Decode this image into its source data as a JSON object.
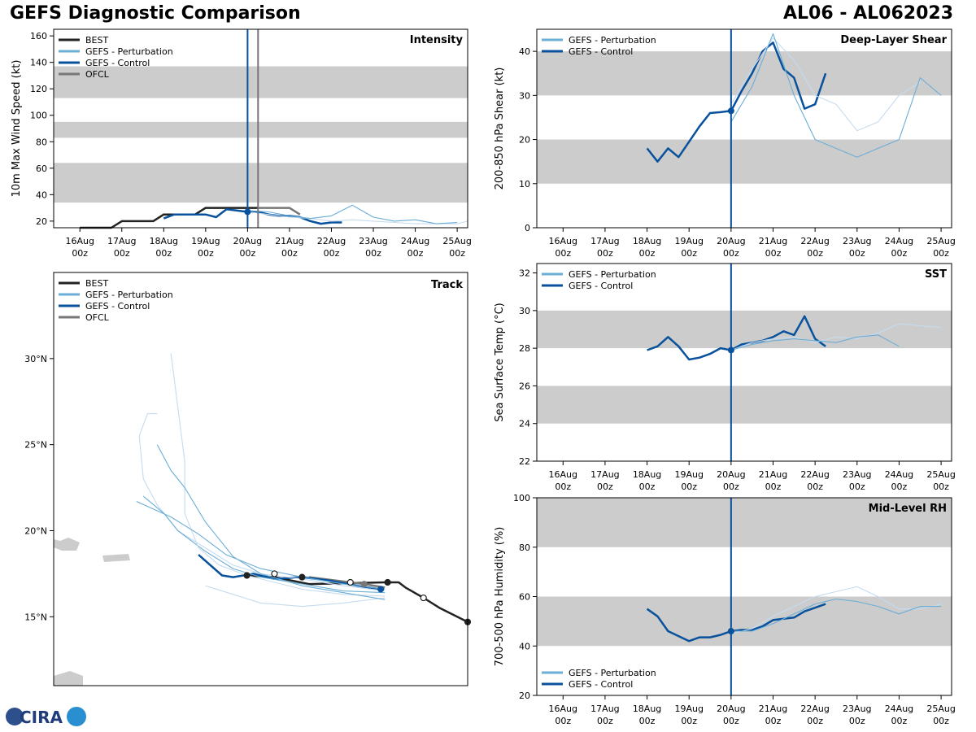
{
  "header": {
    "title_left": "GEFS Diagnostic Comparison",
    "title_right": "AL06 - AL062023",
    "logo_text": "CIRA"
  },
  "colors": {
    "best": "#222222",
    "perturbation": "#6baed6",
    "perturbation_light": "#c6dbef",
    "control": "#08519c",
    "ofcl": "#777777",
    "band": "#cccccc"
  },
  "time_axis": {
    "hours": [
      0,
      24,
      48,
      72,
      96,
      120,
      144,
      168,
      192
    ],
    "labels_top": [
      "16Aug",
      "17Aug",
      "18Aug",
      "19Aug",
      "20Aug",
      "21Aug",
      "22Aug",
      "23Aug",
      "24Aug",
      "25Aug"
    ],
    "labels_bottom": [
      "00z",
      "00z",
      "00z",
      "00z",
      "00z",
      "00z",
      "00z",
      "00z",
      "00z",
      "00z"
    ],
    "init_day_index": 4
  },
  "chart_data": [
    {
      "id": "intensity",
      "type": "line",
      "title": "Intensity",
      "ylabel": "10m Max Wind Speed (kt)",
      "ylim": [
        15,
        165
      ],
      "yticks": [
        20,
        40,
        60,
        80,
        100,
        120,
        140,
        160
      ],
      "bands": [
        [
          34,
          64
        ],
        [
          83,
          95
        ],
        [
          113,
          137
        ]
      ],
      "legend": [
        "BEST",
        "GEFS - Perturbation",
        "GEFS - Control",
        "OFCL"
      ],
      "series": [
        {
          "name": "BEST",
          "day": [
            0,
            0.75,
            1,
            1.75,
            2,
            2.25,
            2.75,
            3,
            3.25,
            4,
            4.25
          ],
          "values": [
            15,
            15,
            20,
            20,
            25,
            25,
            25,
            30,
            30,
            30,
            30
          ]
        },
        {
          "name": "OFCL",
          "day": [
            4.25,
            5,
            5.25
          ],
          "values": [
            30,
            30,
            25
          ]
        },
        {
          "name": "GEFS - Control",
          "day": [
            2,
            2.25,
            2.5,
            2.75,
            3,
            3.25,
            3.5,
            3.75,
            4,
            4.25,
            4.5,
            4.75,
            5,
            5.25,
            5.5,
            5.75,
            6,
            6.25
          ],
          "values": [
            22,
            25,
            25,
            25,
            25,
            23,
            29,
            28,
            27,
            27,
            25,
            24,
            24,
            23,
            20,
            18,
            19,
            19
          ]
        },
        {
          "name": "GEFS - Perturbation",
          "day": [
            4,
            4.5,
            5,
            5.5,
            6,
            6.5,
            7,
            7.5,
            8,
            8.5,
            9,
            9.25
          ],
          "values": [
            27,
            25,
            23,
            22,
            20,
            21,
            20,
            19,
            18,
            18,
            18,
            20
          ]
        },
        {
          "name": "GEFS - Perturbation",
          "day": [
            4,
            4.5,
            5,
            5.5,
            6,
            6.5,
            7,
            7.5,
            8,
            8.5,
            9
          ],
          "values": [
            28,
            27,
            24,
            22,
            24,
            32,
            23,
            20,
            21,
            18,
            19
          ]
        }
      ],
      "init_marker": {
        "day": 4,
        "value": 27
      }
    },
    {
      "id": "shear",
      "type": "line",
      "title": "Deep-Layer Shear",
      "ylabel": "200-850 hPa Shear (kt)",
      "ylim": [
        0,
        45
      ],
      "yticks": [
        0,
        10,
        20,
        30,
        40
      ],
      "bands": [
        [
          10,
          20
        ],
        [
          30,
          40
        ]
      ],
      "legend": [
        "GEFS - Perturbation",
        "GEFS - Control"
      ],
      "series": [
        {
          "name": "GEFS - Control",
          "day": [
            2,
            2.25,
            2.5,
            2.75,
            3,
            3.25,
            3.5,
            3.75,
            4,
            4.25,
            4.5,
            4.75,
            5,
            5.25,
            5.5,
            5.75,
            6,
            6.25
          ],
          "values": [
            18,
            15,
            18,
            16,
            19.5,
            23,
            26,
            26.2,
            26.5,
            31,
            35,
            40,
            42,
            36,
            34,
            27,
            28,
            35
          ]
        },
        {
          "name": "GEFS - Perturbation",
          "day": [
            4,
            4.5,
            5,
            5.5,
            6,
            6.5,
            7,
            7.5,
            8,
            8.5
          ],
          "values": [
            28,
            36,
            43,
            38,
            30,
            28,
            22,
            24,
            30,
            33
          ]
        },
        {
          "name": "GEFS - Perturbation",
          "day": [
            4,
            4.5,
            5,
            5.5,
            6,
            6.5,
            7,
            7.5,
            8,
            8.5,
            9
          ],
          "values": [
            24,
            32,
            44,
            30,
            20,
            18,
            16,
            18,
            20,
            34,
            30
          ]
        }
      ],
      "init_marker": {
        "day": 4,
        "value": 26.5
      }
    },
    {
      "id": "sst",
      "type": "line",
      "title": "SST",
      "ylabel": "Sea Surface Temp (°C)",
      "ylim": [
        22,
        32.5
      ],
      "yticks": [
        22,
        24,
        26,
        28,
        30,
        32
      ],
      "bands": [
        [
          24,
          26
        ],
        [
          28,
          30
        ]
      ],
      "legend": [
        "GEFS - Perturbation",
        "GEFS - Control"
      ],
      "series": [
        {
          "name": "GEFS - Control",
          "day": [
            2,
            2.25,
            2.5,
            2.75,
            3,
            3.25,
            3.5,
            3.75,
            4,
            4.25,
            4.5,
            4.75,
            5,
            5.25,
            5.5,
            5.75,
            6,
            6.25
          ],
          "values": [
            27.9,
            28.1,
            28.6,
            28.1,
            27.4,
            27.5,
            27.7,
            28,
            27.9,
            28.2,
            28.3,
            28.4,
            28.6,
            28.9,
            28.7,
            29.7,
            28.5,
            28.1
          ]
        },
        {
          "name": "GEFS - Perturbation",
          "day": [
            4,
            4.5,
            5,
            5.5,
            6,
            6.5,
            7,
            7.5,
            8,
            8.5,
            9
          ],
          "values": [
            27.9,
            28.3,
            28.5,
            28.6,
            28.3,
            28.6,
            28.5,
            28.8,
            29.3,
            29.2,
            29.1
          ]
        },
        {
          "name": "GEFS - Perturbation",
          "day": [
            4,
            4.5,
            5,
            5.5,
            6,
            6.5,
            7,
            7.5,
            8
          ],
          "values": [
            27.9,
            28.2,
            28.4,
            28.5,
            28.4,
            28.3,
            28.6,
            28.7,
            28.1
          ]
        }
      ],
      "init_marker": {
        "day": 4,
        "value": 27.9
      }
    },
    {
      "id": "rh",
      "type": "line",
      "title": "Mid-Level RH",
      "ylabel": "700-500 hPa Humidity (%)",
      "ylim": [
        20,
        100
      ],
      "yticks": [
        20,
        40,
        60,
        80,
        100
      ],
      "bands": [
        [
          40,
          60
        ],
        [
          80,
          100
        ]
      ],
      "legend": [
        "GEFS - Perturbation",
        "GEFS - Control"
      ],
      "series": [
        {
          "name": "GEFS - Control",
          "day": [
            2,
            2.25,
            2.5,
            2.75,
            3,
            3.25,
            3.5,
            3.75,
            4,
            4.25,
            4.5,
            4.75,
            5,
            5.25,
            5.5,
            5.75,
            6,
            6.25
          ],
          "values": [
            55,
            52,
            46,
            44,
            42,
            43.5,
            43.5,
            44.5,
            46,
            46.5,
            46.5,
            48,
            50.5,
            51,
            51.5,
            54,
            55.5,
            57
          ]
        },
        {
          "name": "GEFS - Perturbation",
          "day": [
            4,
            4.5,
            5,
            5.5,
            6,
            6.5,
            7,
            7.5,
            8,
            8.5,
            9
          ],
          "values": [
            45,
            47,
            52,
            56,
            60,
            62,
            64,
            60,
            55,
            55,
            57
          ]
        },
        {
          "name": "GEFS - Perturbation",
          "day": [
            4,
            4.5,
            5,
            5.5,
            6,
            6.5,
            7,
            7.5,
            8,
            8.5,
            9
          ],
          "values": [
            46,
            46,
            49,
            53,
            57,
            59,
            58,
            56,
            53,
            56,
            56
          ]
        }
      ],
      "init_marker": {
        "day": 4,
        "value": 46
      }
    },
    {
      "id": "track",
      "type": "line",
      "title": "Track",
      "lon_range": [
        -68,
        -38
      ],
      "lat_range": [
        11,
        35
      ],
      "lat_ticks": [
        15,
        20,
        25,
        30
      ],
      "lat_labels": [
        "15°N",
        "20°N",
        "25°N",
        "30°N"
      ],
      "legend": [
        "BEST",
        "GEFS - Perturbation",
        "GEFS - Control",
        "OFCL"
      ],
      "series": [
        {
          "name": "BEST",
          "lon": [
            -38,
            -40,
            -41.2,
            -42.5,
            -43,
            -44,
            -49.5,
            -52,
            -54
          ],
          "lat": [
            14.7,
            15.5,
            16.1,
            16.7,
            17.0,
            17.0,
            16.9,
            17.3,
            17.4
          ]
        },
        {
          "name": "OFCL",
          "lon": [
            -44,
            -45.5,
            -47.5,
            -49.5
          ],
          "lat": [
            16.7,
            16.9,
            17.1,
            17.3
          ]
        },
        {
          "name": "GEFS - Control",
          "lon": [
            -44.3,
            -46,
            -48,
            -50,
            -52,
            -53.5,
            -55,
            -55.8,
            -57.5
          ],
          "lat": [
            16.6,
            16.8,
            17.1,
            17.3,
            17.2,
            17.5,
            17.3,
            17.4,
            18.6
          ]
        },
        {
          "name": "GEFS - Perturbation",
          "lon": [
            -44,
            -47,
            -50,
            -53,
            -55,
            -57,
            -59,
            -60.5,
            -61.5,
            -61.8,
            -61.2,
            -60.5
          ],
          "lat": [
            16.5,
            16.8,
            17.2,
            17.5,
            18,
            19,
            20,
            21.5,
            23,
            25.5,
            26.8,
            26.8
          ]
        },
        {
          "name": "GEFS - Perturbation",
          "lon": [
            -44,
            -47,
            -50,
            -53,
            -55,
            -57,
            -59,
            -60,
            -61.5
          ],
          "lat": [
            16.4,
            16.5,
            16.9,
            17.3,
            17.8,
            18.8,
            20,
            21,
            22
          ]
        },
        {
          "name": "GEFS - Perturbation",
          "lon": [
            -44,
            -47,
            -50,
            -52,
            -54,
            -56,
            -57.5,
            -58.5,
            -58.5,
            -59.5
          ],
          "lat": [
            16.2,
            16.3,
            16.6,
            17.0,
            17.4,
            18.0,
            19.0,
            21.0,
            24.0,
            30.3
          ]
        },
        {
          "name": "GEFS - Perturbation",
          "lon": [
            -44,
            -47,
            -50,
            -53,
            -55.5,
            -57.5,
            -59.5,
            -62
          ],
          "lat": [
            16.6,
            16.9,
            17.3,
            17.8,
            18.6,
            19.8,
            20.8,
            21.7
          ]
        },
        {
          "name": "GEFS - Perturbation",
          "lon": [
            -44,
            -47,
            -50,
            -53,
            -55,
            -57
          ],
          "lat": [
            16.1,
            15.8,
            15.6,
            15.8,
            16.3,
            16.8
          ]
        },
        {
          "name": "GEFS - Perturbation",
          "lon": [
            -44,
            -47,
            -50,
            -53,
            -55,
            -57,
            -58.5,
            -59.5,
            -60.5
          ],
          "lat": [
            16.0,
            16.4,
            16.8,
            17.5,
            18.5,
            20.5,
            22.5,
            23.5,
            25.0
          ]
        }
      ],
      "best_markers": [
        {
          "lon": -38,
          "lat": 14.7,
          "hollow": false
        },
        {
          "lon": -41.2,
          "lat": 16.1,
          "hollow": true
        },
        {
          "lon": -43.8,
          "lat": 17.0,
          "hollow": false
        },
        {
          "lon": -46.5,
          "lat": 17.0,
          "hollow": true
        },
        {
          "lon": -50,
          "lat": 17.3,
          "hollow": false
        },
        {
          "lon": -52,
          "lat": 17.5,
          "hollow": true
        },
        {
          "lon": -54,
          "lat": 17.4,
          "hollow": false
        }
      ],
      "control_marker": {
        "lon": -44.3,
        "lat": 16.6
      },
      "ofcl_marker": {
        "lon": -45.5,
        "lat": 16.9
      }
    }
  ]
}
